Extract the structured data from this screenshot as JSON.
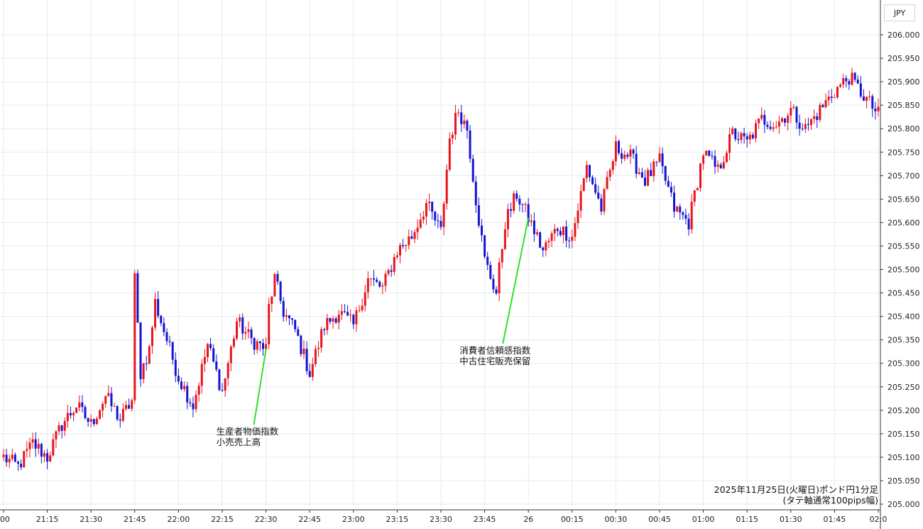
{
  "currency": "JPY",
  "chart_data": {
    "type": "candlestick",
    "pair": "GBP/JPY",
    "interval": "1分足",
    "caption": [
      "2025年11月25日(火曜日)ポンド円1分足",
      "(タテ軸通常100pips幅)"
    ],
    "x_ticks": [
      ":00",
      "21:15",
      "21:30",
      "21:45",
      "22:00",
      "22:15",
      "22:30",
      "22:45",
      "23:00",
      "23:15",
      "23:30",
      "23:45",
      "26",
      "00:15",
      "00:30",
      "00:45",
      "01:00",
      "01:15",
      "01:30",
      "01:45",
      "02:0"
    ],
    "y_ticks": [
      "206.000",
      "205.950",
      "205.900",
      "205.850",
      "205.800",
      "205.750",
      "205.700",
      "205.650",
      "205.600",
      "205.550",
      "205.500",
      "205.450",
      "205.400",
      "205.350",
      "205.300",
      "205.250",
      "205.200",
      "205.150",
      "205.100",
      "205.050",
      "205.000"
    ],
    "ylim": [
      205.0,
      206.0
    ],
    "up_color": "#e8141c",
    "down_color": "#1414d2",
    "annotations": [
      {
        "lines": [
          "生産者物価指数",
          "小売売上高"
        ],
        "time": "22:30",
        "price": 205.33,
        "color": "#2fe02f"
      },
      {
        "lines": [
          "消費者信頼感指数",
          "中古住宅販売保留"
        ],
        "time": "00:00",
        "price": 205.61,
        "color": "#2fe02f"
      }
    ],
    "close_path": [
      [
        "21:00",
        205.1
      ],
      [
        "21:05",
        205.08
      ],
      [
        "21:10",
        205.13
      ],
      [
        "21:15",
        205.1
      ],
      [
        "21:20",
        205.17
      ],
      [
        "21:25",
        205.21
      ],
      [
        "21:30",
        205.17
      ],
      [
        "21:35",
        205.23
      ],
      [
        "21:40",
        205.18
      ],
      [
        "21:44",
        205.22
      ],
      [
        "21:45",
        205.48
      ],
      [
        "21:47",
        205.28
      ],
      [
        "21:50",
        205.33
      ],
      [
        "21:52",
        205.43
      ],
      [
        "21:55",
        205.37
      ],
      [
        "22:00",
        205.27
      ],
      [
        "22:05",
        205.21
      ],
      [
        "22:10",
        205.34
      ],
      [
        "22:15",
        205.24
      ],
      [
        "22:20",
        205.39
      ],
      [
        "22:25",
        205.35
      ],
      [
        "22:30",
        205.33
      ],
      [
        "22:31",
        205.42
      ],
      [
        "22:33",
        205.48
      ],
      [
        "22:36",
        205.41
      ],
      [
        "22:40",
        205.37
      ],
      [
        "22:45",
        205.28
      ],
      [
        "22:50",
        205.38
      ],
      [
        "22:55",
        205.41
      ],
      [
        "23:00",
        205.38
      ],
      [
        "23:05",
        205.48
      ],
      [
        "23:10",
        205.46
      ],
      [
        "23:15",
        205.54
      ],
      [
        "23:20",
        205.57
      ],
      [
        "23:25",
        205.64
      ],
      [
        "23:30",
        205.58
      ],
      [
        "23:33",
        205.78
      ],
      [
        "23:36",
        205.84
      ],
      [
        "23:39",
        205.8
      ],
      [
        "23:42",
        205.65
      ],
      [
        "23:45",
        205.52
      ],
      [
        "23:49",
        205.45
      ],
      [
        "23:52",
        205.6
      ],
      [
        "23:56",
        205.66
      ],
      [
        "00:00",
        205.61
      ],
      [
        "00:05",
        205.54
      ],
      [
        "00:10",
        205.59
      ],
      [
        "00:15",
        205.57
      ],
      [
        "00:20",
        205.72
      ],
      [
        "00:25",
        205.63
      ],
      [
        "00:30",
        205.76
      ],
      [
        "00:35",
        205.74
      ],
      [
        "00:40",
        205.69
      ],
      [
        "00:45",
        205.73
      ],
      [
        "00:50",
        205.63
      ],
      [
        "00:55",
        205.6
      ],
      [
        "01:00",
        205.75
      ],
      [
        "01:05",
        205.71
      ],
      [
        "01:10",
        205.79
      ],
      [
        "01:15",
        205.77
      ],
      [
        "01:20",
        205.82
      ],
      [
        "01:25",
        205.81
      ],
      [
        "01:30",
        205.84
      ],
      [
        "01:35",
        205.8
      ],
      [
        "01:40",
        205.84
      ],
      [
        "01:45",
        205.88
      ],
      [
        "01:50",
        205.91
      ],
      [
        "01:55",
        205.87
      ],
      [
        "02:00",
        205.83
      ]
    ]
  }
}
